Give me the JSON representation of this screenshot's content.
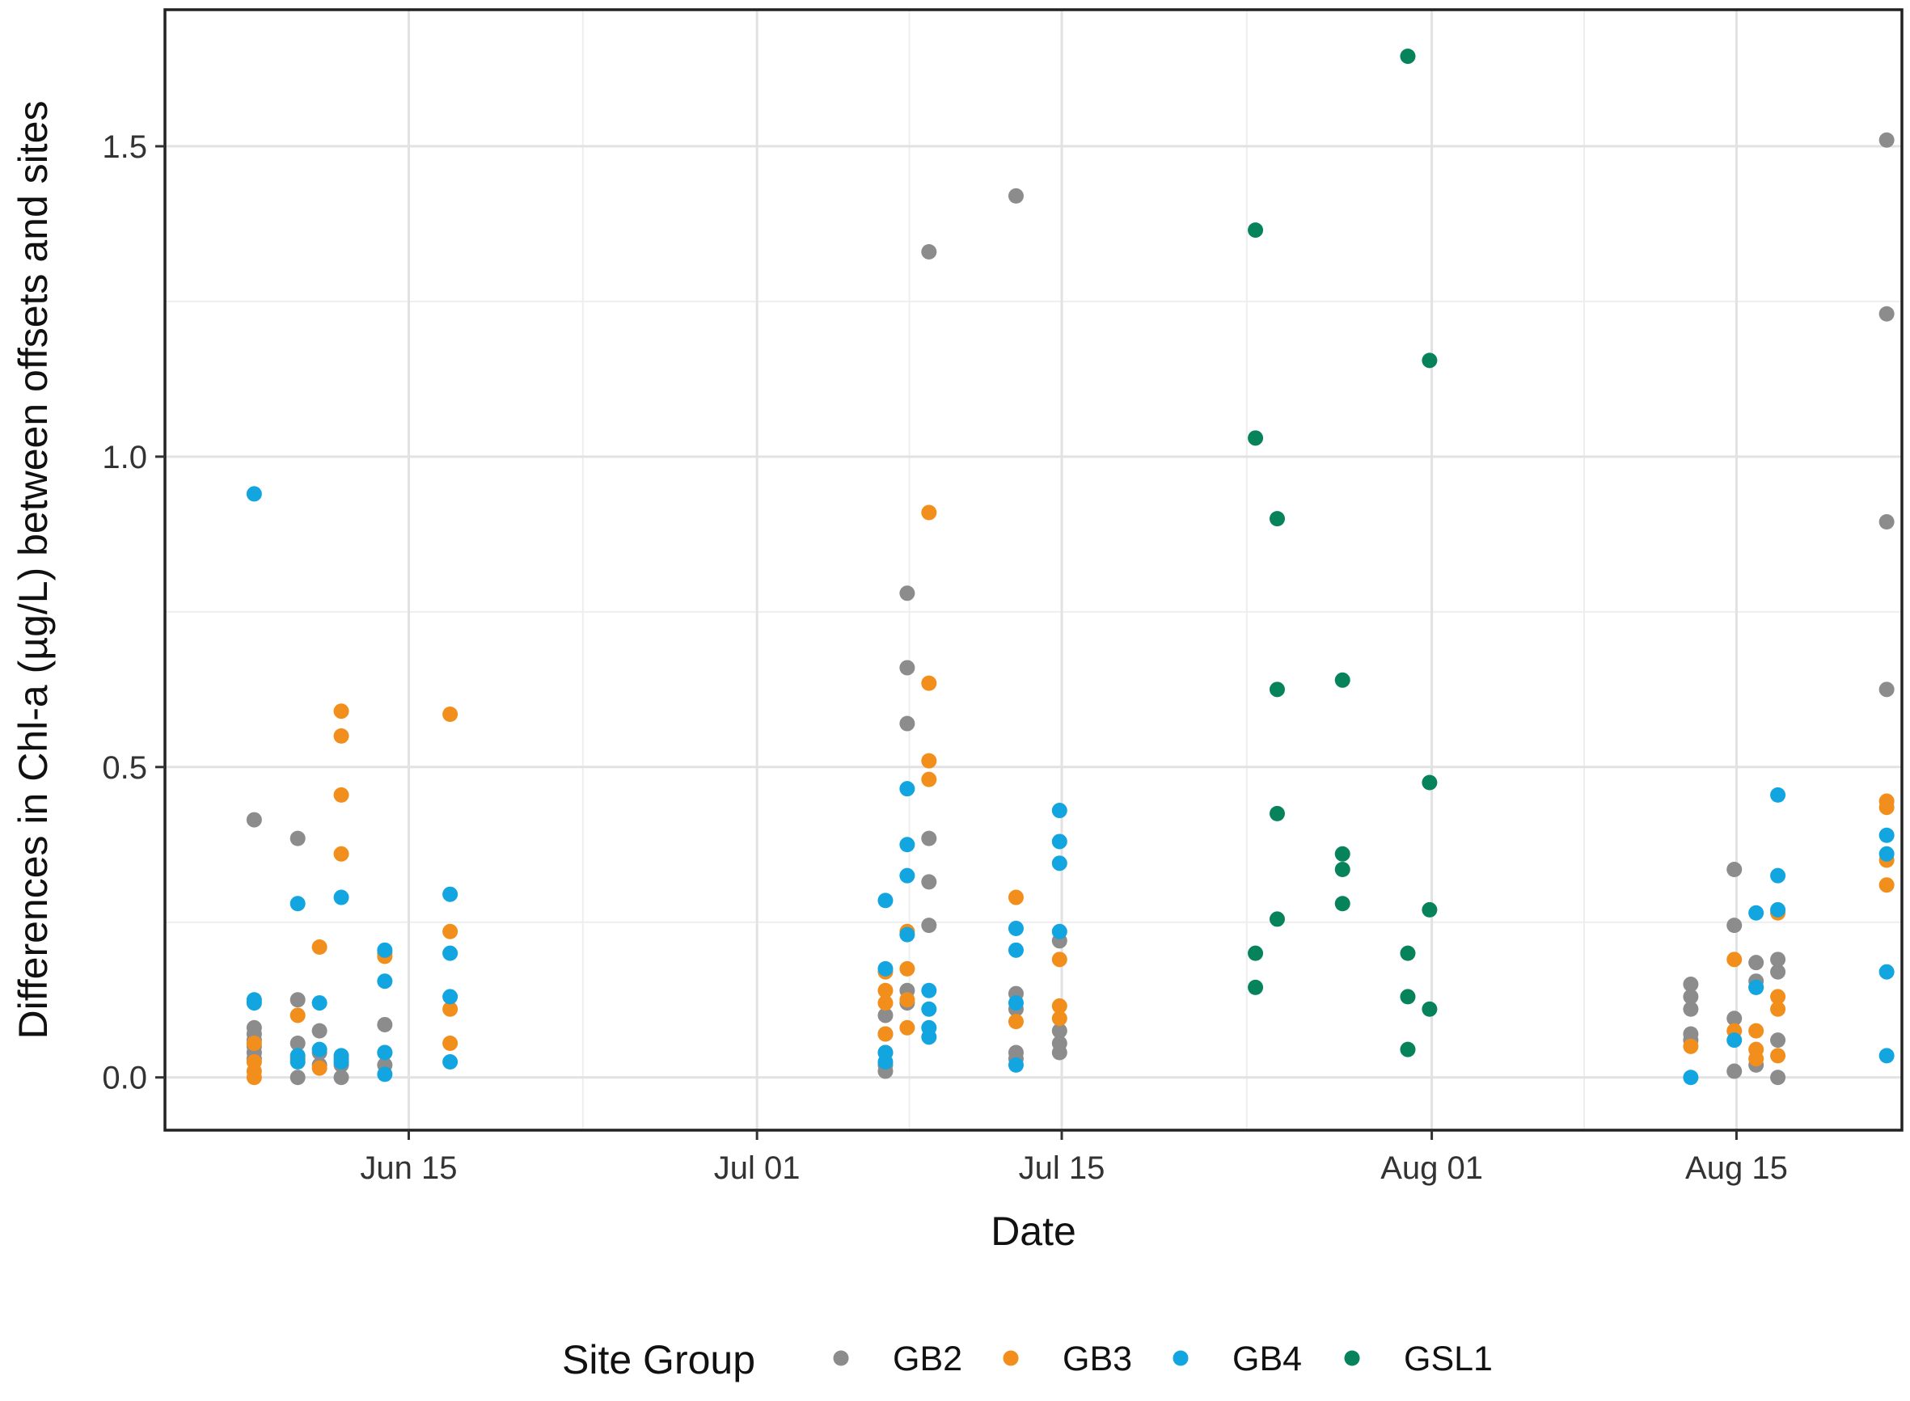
{
  "chart_data": {
    "type": "scatter",
    "title": "",
    "xlabel": "Date",
    "ylabel": "Differences in Chl-a (µg/L) between offsets and sites",
    "x_unit": "days since Jun 01",
    "xlim": [
      2.8,
      82.6
    ],
    "ylim": [
      -0.085,
      1.72
    ],
    "x_ticks": [
      {
        "value": 14,
        "label": "Jun 15"
      },
      {
        "value": 30,
        "label": "Jul 01"
      },
      {
        "value": 44,
        "label": "Jul 15"
      },
      {
        "value": 61,
        "label": "Aug 01"
      },
      {
        "value": 75,
        "label": "Aug 15"
      }
    ],
    "x_minor_ticks": [
      22,
      37,
      52.5,
      68
    ],
    "y_ticks": [
      {
        "value": 0.0,
        "label": "0.0"
      },
      {
        "value": 0.5,
        "label": "0.5"
      },
      {
        "value": 1.0,
        "label": "1.0"
      },
      {
        "value": 1.5,
        "label": "1.5"
      }
    ],
    "y_minor_ticks": [
      0.25,
      0.75,
      1.25
    ],
    "grid": true,
    "legend": {
      "title": "Site Group",
      "position": "bottom"
    },
    "series": [
      {
        "name": "GB2",
        "color": "#8c8c8c",
        "points": [
          [
            6.9,
            0.415
          ],
          [
            6.9,
            0.08
          ],
          [
            6.9,
            0.07
          ],
          [
            6.9,
            0.06
          ],
          [
            6.9,
            0.05
          ],
          [
            6.9,
            0.04
          ],
          [
            6.9,
            0.03
          ],
          [
            8.9,
            0.385
          ],
          [
            8.9,
            0.125
          ],
          [
            8.9,
            0.055
          ],
          [
            8.9,
            0.03
          ],
          [
            8.9,
            0.0
          ],
          [
            9.9,
            0.075
          ],
          [
            9.9,
            0.04
          ],
          [
            9.9,
            0.02
          ],
          [
            10.9,
            0.03
          ],
          [
            10.9,
            0.02
          ],
          [
            10.9,
            0.0
          ],
          [
            12.9,
            0.085
          ],
          [
            12.9,
            0.04
          ],
          [
            12.9,
            0.02
          ],
          [
            35.9,
            0.1
          ],
          [
            35.9,
            0.07
          ],
          [
            35.9,
            0.04
          ],
          [
            35.9,
            0.02
          ],
          [
            35.9,
            0.01
          ],
          [
            36.9,
            0.78
          ],
          [
            36.9,
            0.66
          ],
          [
            36.9,
            0.57
          ],
          [
            36.9,
            0.14
          ],
          [
            36.9,
            0.12
          ],
          [
            37.9,
            1.33
          ],
          [
            37.9,
            0.385
          ],
          [
            37.9,
            0.315
          ],
          [
            37.9,
            0.245
          ],
          [
            41.9,
            1.42
          ],
          [
            41.9,
            0.135
          ],
          [
            41.9,
            0.11
          ],
          [
            41.9,
            0.04
          ],
          [
            41.9,
            0.03
          ],
          [
            43.9,
            0.22
          ],
          [
            43.9,
            0.075
          ],
          [
            43.9,
            0.055
          ],
          [
            43.9,
            0.04
          ],
          [
            72.9,
            0.15
          ],
          [
            72.9,
            0.13
          ],
          [
            72.9,
            0.11
          ],
          [
            72.9,
            0.07
          ],
          [
            72.9,
            0.06
          ],
          [
            74.9,
            0.335
          ],
          [
            74.9,
            0.245
          ],
          [
            74.9,
            0.095
          ],
          [
            74.9,
            0.01
          ],
          [
            75.9,
            0.185
          ],
          [
            75.9,
            0.155
          ],
          [
            75.9,
            0.145
          ],
          [
            75.9,
            0.02
          ],
          [
            76.9,
            0.19
          ],
          [
            76.9,
            0.17
          ],
          [
            76.9,
            0.06
          ],
          [
            76.9,
            0.0
          ],
          [
            81.9,
            1.51
          ],
          [
            81.9,
            1.23
          ],
          [
            81.9,
            0.895
          ],
          [
            81.9,
            0.625
          ]
        ]
      },
      {
        "name": "GB3",
        "color": "#f28e1c",
        "points": [
          [
            6.9,
            0.055
          ],
          [
            6.9,
            0.025
          ],
          [
            6.9,
            0.01
          ],
          [
            6.9,
            0.0
          ],
          [
            8.9,
            0.1
          ],
          [
            8.9,
            0.03
          ],
          [
            9.9,
            0.21
          ],
          [
            9.9,
            0.015
          ],
          [
            10.9,
            0.59
          ],
          [
            10.9,
            0.55
          ],
          [
            10.9,
            0.455
          ],
          [
            10.9,
            0.36
          ],
          [
            12.9,
            0.2
          ],
          [
            12.9,
            0.195
          ],
          [
            15.9,
            0.585
          ],
          [
            15.9,
            0.235
          ],
          [
            15.9,
            0.11
          ],
          [
            15.9,
            0.055
          ],
          [
            35.9,
            0.17
          ],
          [
            35.9,
            0.14
          ],
          [
            35.9,
            0.12
          ],
          [
            35.9,
            0.07
          ],
          [
            36.9,
            0.235
          ],
          [
            36.9,
            0.175
          ],
          [
            36.9,
            0.125
          ],
          [
            36.9,
            0.08
          ],
          [
            37.9,
            0.91
          ],
          [
            37.9,
            0.635
          ],
          [
            37.9,
            0.51
          ],
          [
            37.9,
            0.48
          ],
          [
            41.9,
            0.29
          ],
          [
            41.9,
            0.09
          ],
          [
            43.9,
            0.19
          ],
          [
            43.9,
            0.115
          ],
          [
            43.9,
            0.095
          ],
          [
            72.9,
            0.05
          ],
          [
            74.9,
            0.19
          ],
          [
            74.9,
            0.075
          ],
          [
            75.9,
            0.075
          ],
          [
            75.9,
            0.045
          ],
          [
            75.9,
            0.03
          ],
          [
            76.9,
            0.265
          ],
          [
            76.9,
            0.13
          ],
          [
            76.9,
            0.11
          ],
          [
            76.9,
            0.035
          ],
          [
            81.9,
            0.445
          ],
          [
            81.9,
            0.435
          ],
          [
            81.9,
            0.35
          ],
          [
            81.9,
            0.31
          ]
        ]
      },
      {
        "name": "GB4",
        "color": "#12a5e0",
        "points": [
          [
            6.9,
            0.94
          ],
          [
            6.9,
            0.125
          ],
          [
            6.9,
            0.12
          ],
          [
            8.9,
            0.28
          ],
          [
            8.9,
            0.035
          ],
          [
            8.9,
            0.025
          ],
          [
            9.9,
            0.12
          ],
          [
            9.9,
            0.045
          ],
          [
            10.9,
            0.29
          ],
          [
            10.9,
            0.035
          ],
          [
            10.9,
            0.025
          ],
          [
            12.9,
            0.205
          ],
          [
            12.9,
            0.155
          ],
          [
            12.9,
            0.04
          ],
          [
            12.9,
            0.005
          ],
          [
            15.9,
            0.295
          ],
          [
            15.9,
            0.2
          ],
          [
            15.9,
            0.13
          ],
          [
            15.9,
            0.025
          ],
          [
            35.9,
            0.285
          ],
          [
            35.9,
            0.175
          ],
          [
            35.9,
            0.04
          ],
          [
            35.9,
            0.025
          ],
          [
            36.9,
            0.465
          ],
          [
            36.9,
            0.375
          ],
          [
            36.9,
            0.325
          ],
          [
            36.9,
            0.23
          ],
          [
            37.9,
            0.14
          ],
          [
            37.9,
            0.11
          ],
          [
            37.9,
            0.08
          ],
          [
            37.9,
            0.065
          ],
          [
            41.9,
            0.24
          ],
          [
            41.9,
            0.205
          ],
          [
            41.9,
            0.12
          ],
          [
            41.9,
            0.02
          ],
          [
            43.9,
            0.43
          ],
          [
            43.9,
            0.38
          ],
          [
            43.9,
            0.345
          ],
          [
            43.9,
            0.235
          ],
          [
            72.9,
            0.0
          ],
          [
            74.9,
            0.06
          ],
          [
            75.9,
            0.265
          ],
          [
            75.9,
            0.145
          ],
          [
            76.9,
            0.455
          ],
          [
            76.9,
            0.325
          ],
          [
            76.9,
            0.27
          ],
          [
            81.9,
            0.39
          ],
          [
            81.9,
            0.36
          ],
          [
            81.9,
            0.17
          ],
          [
            81.9,
            0.035
          ]
        ]
      },
      {
        "name": "GSL1",
        "color": "#07835c",
        "points": [
          [
            52.9,
            1.365
          ],
          [
            52.9,
            1.03
          ],
          [
            52.9,
            0.2
          ],
          [
            52.9,
            0.145
          ],
          [
            53.9,
            0.9
          ],
          [
            53.9,
            0.625
          ],
          [
            53.9,
            0.425
          ],
          [
            53.9,
            0.255
          ],
          [
            56.9,
            0.64
          ],
          [
            56.9,
            0.36
          ],
          [
            56.9,
            0.335
          ],
          [
            56.9,
            0.28
          ],
          [
            59.9,
            1.645
          ],
          [
            59.9,
            0.2
          ],
          [
            59.9,
            0.13
          ],
          [
            59.9,
            0.045
          ],
          [
            60.9,
            1.155
          ],
          [
            60.9,
            0.475
          ],
          [
            60.9,
            0.27
          ],
          [
            60.9,
            0.11
          ]
        ]
      }
    ]
  }
}
